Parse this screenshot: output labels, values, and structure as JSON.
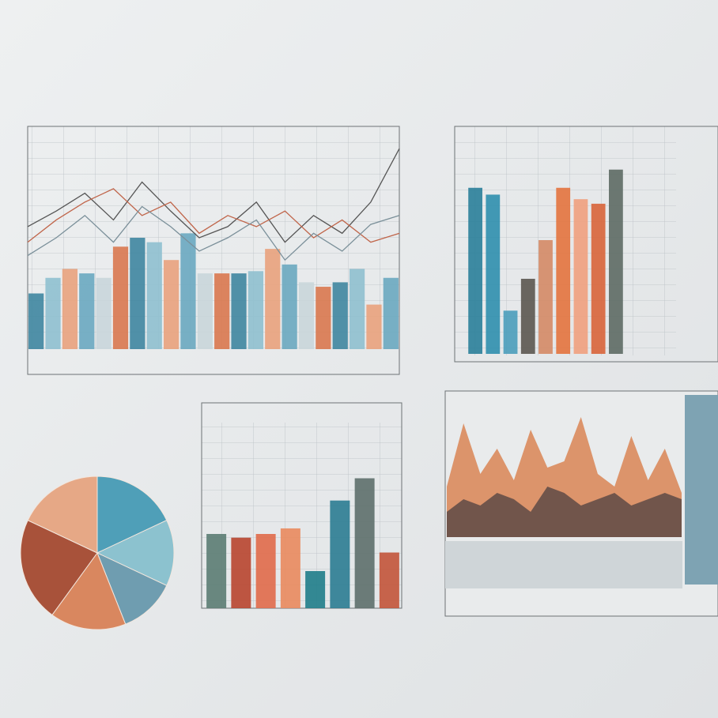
{
  "chart_data": [
    {
      "type": "combo",
      "ylim": [
        0,
        100
      ],
      "series": [
        {
          "type": "bar",
          "colors": [
            "#3f86a0",
            "#8fc0cf",
            "#e9a27d",
            "#6aa8c0",
            "#c9d6da",
            "#d9784f"
          ],
          "values": [
            25,
            32,
            36,
            34,
            32,
            46,
            50,
            48,
            40,
            52,
            34,
            34,
            34,
            35,
            45,
            38,
            30,
            28,
            30,
            36,
            20,
            32
          ]
        },
        {
          "type": "line",
          "color": "#555555",
          "values": [
            55,
            62,
            70,
            58,
            75,
            62,
            50,
            55,
            66,
            48,
            60,
            52,
            66,
            90
          ]
        },
        {
          "type": "line",
          "color": "#c0654a",
          "values": [
            48,
            58,
            66,
            72,
            60,
            66,
            52,
            60,
            55,
            62,
            50,
            58,
            48,
            52
          ]
        },
        {
          "type": "line",
          "color": "#7a8f99",
          "values": [
            42,
            50,
            60,
            48,
            64,
            55,
            44,
            50,
            58,
            40,
            52,
            44,
            56,
            60
          ]
        }
      ]
    },
    {
      "type": "bar",
      "ylim": [
        0,
        100
      ],
      "colors": [
        "#2a7f9a",
        "#2f8fae",
        "#4a9dbb",
        "#5b5650",
        "#d48a66",
        "#e3733e",
        "#f0a07e",
        "#d8643a",
        "#5d6a64"
      ],
      "values": [
        73,
        70,
        19,
        33,
        50,
        73,
        68,
        66,
        81
      ]
    },
    {
      "type": "pie",
      "colors": [
        "#4f9fb8",
        "#8cc2cf",
        "#6f9db0",
        "#d9875f",
        "#a8523a",
        "#e6a886"
      ],
      "values": [
        18,
        14,
        12,
        16,
        22,
        18
      ]
    },
    {
      "type": "bar",
      "ylim": [
        0,
        100
      ],
      "colors": [
        "#5b7c73",
        "#b8452f",
        "#e06a4a",
        "#e98a5e",
        "#1f7d8a",
        "#2b7c92",
        "#5d6f6c",
        "#c2543a"
      ],
      "values": [
        40,
        38,
        40,
        43,
        20,
        58,
        70,
        30
      ]
    },
    {
      "type": "area",
      "ylim": [
        0,
        100
      ],
      "series": [
        {
          "color": "#d98555",
          "values": [
            40,
            90,
            50,
            70,
            45,
            85,
            55,
            60,
            95,
            50,
            40,
            80,
            45,
            70,
            35
          ]
        },
        {
          "color": "#5e4a45",
          "values": [
            20,
            30,
            25,
            35,
            30,
            20,
            40,
            35,
            25,
            30,
            35,
            25,
            30,
            35,
            30
          ]
        }
      ]
    }
  ]
}
